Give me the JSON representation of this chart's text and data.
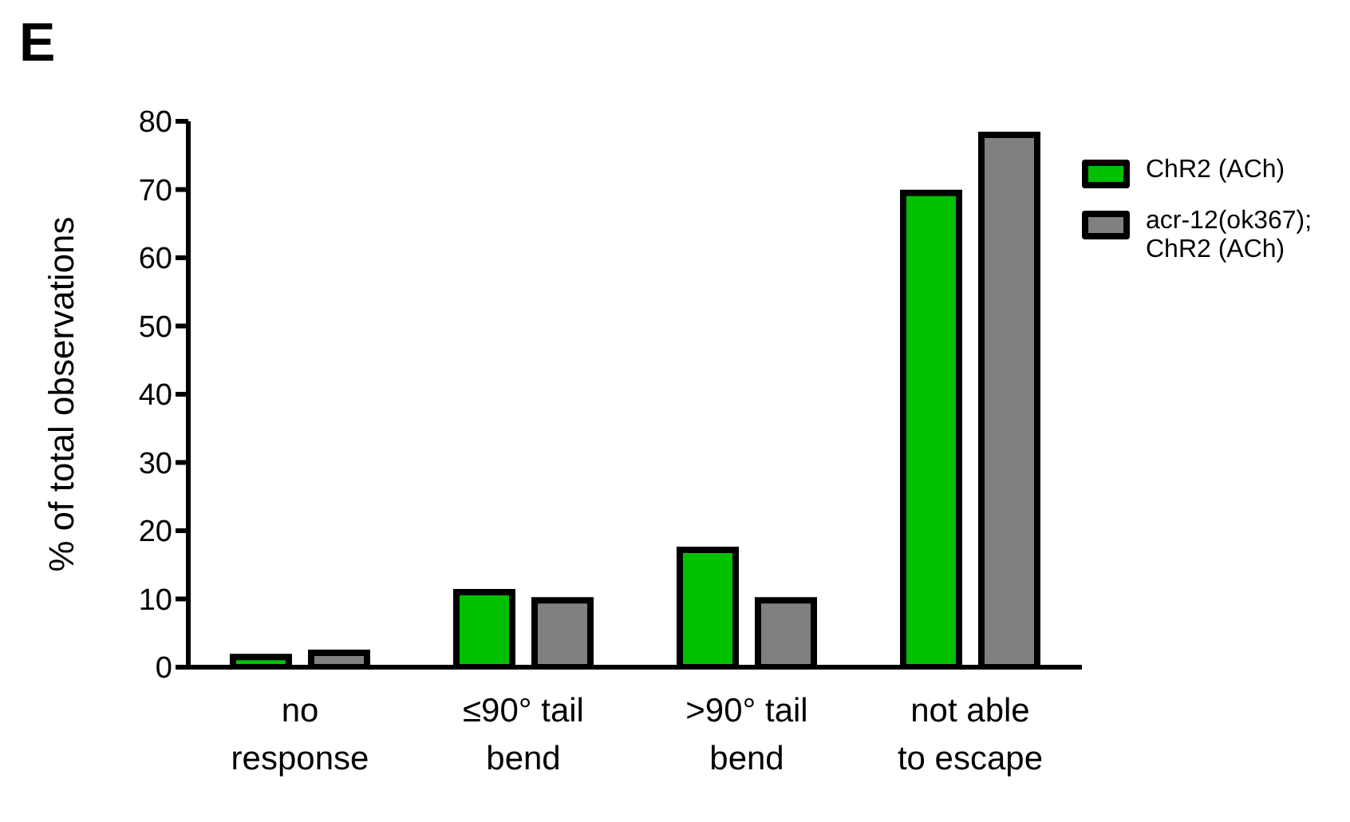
{
  "chart_data": {
    "type": "bar",
    "title": "E",
    "ylabel": "% of total observations",
    "categories": [
      "no\nresponse",
      "≤90° tail\nbend",
      ">90° tail\nbend",
      "not able\nto escape"
    ],
    "series": [
      {
        "name": "ChR2 (ACh)",
        "color": "#00c000",
        "values": [
          1.5,
          11,
          17.2,
          69.5
        ]
      },
      {
        "name": "acr-12(ok367); ChR2 (ACh)",
        "color": "#808080",
        "values": [
          2.1,
          9.8,
          9.8,
          78
        ]
      }
    ],
    "ylim": [
      0,
      80
    ],
    "yticks": [
      0,
      10,
      20,
      30,
      40,
      50,
      60,
      70,
      80
    ],
    "grid": false,
    "legend": "right"
  }
}
